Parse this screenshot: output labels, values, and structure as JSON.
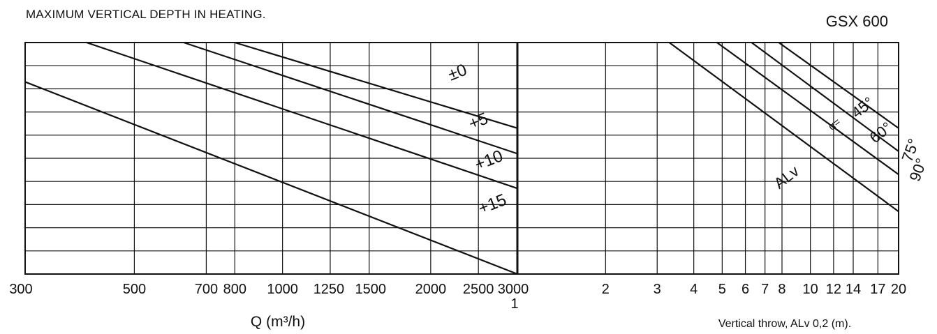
{
  "header": {
    "title": "MAXIMUM VERTICAL DEPTH  IN HEATING.",
    "model": "GSX 600"
  },
  "chart_data": [
    {
      "type": "line",
      "title": "MAXIMUM VERTICAL DEPTH  IN HEATING.",
      "xlabel": "Q (m³/h)",
      "x_scale": "log",
      "xlim": [
        300,
        3000
      ],
      "x_ticks": [
        300,
        500,
        700,
        800,
        1000,
        1250,
        1500,
        2000,
        2500,
        3000
      ],
      "x_tick_labels": [
        "300",
        "500",
        "700",
        "800",
        "1000",
        "1250",
        "1500",
        "2000",
        "2500",
        "3000"
      ],
      "grid": true,
      "series": [
        {
          "name": "±0",
          "x": [
            300,
            3000
          ],
          "y": [
            0.83,
            0.0
          ]
        },
        {
          "name": "+5",
          "x": [
            400,
            3000
          ],
          "y": [
            1.0,
            0.37
          ]
        },
        {
          "name": "+10",
          "x": [
            630,
            3000
          ],
          "y": [
            1.0,
            0.52
          ]
        },
        {
          "name": "+15",
          "x": [
            800,
            3000
          ],
          "y": [
            1.0,
            0.63
          ]
        }
      ]
    },
    {
      "type": "line",
      "xlabel": "Vertical  throw,  ALv  0,2 (m).",
      "x_scale": "log",
      "xlim": [
        1,
        20
      ],
      "x_ticks": [
        1,
        2,
        3,
        4,
        5,
        6,
        7,
        8,
        10,
        12,
        14,
        17,
        20
      ],
      "x_tick_labels": [
        "1",
        "2",
        "3",
        "4",
        "5",
        "6",
        "7",
        "8",
        "10",
        "12",
        "14",
        "17",
        "20"
      ],
      "grid": true,
      "annotations": [
        "ALv",
        "α=",
        "45°",
        "60°",
        "75°",
        "90°"
      ],
      "series": [
        {
          "name": "45°",
          "x": [
            3.3,
            20
          ],
          "y": [
            1.0,
            0.27
          ]
        },
        {
          "name": "60°",
          "x": [
            4.8,
            20
          ],
          "y": [
            1.0,
            0.43
          ]
        },
        {
          "name": "75°",
          "x": [
            6.3,
            20
          ],
          "y": [
            1.0,
            0.53
          ]
        },
        {
          "name": "90°",
          "x": [
            7.8,
            20
          ],
          "y": [
            1.0,
            0.63
          ]
        }
      ]
    }
  ]
}
